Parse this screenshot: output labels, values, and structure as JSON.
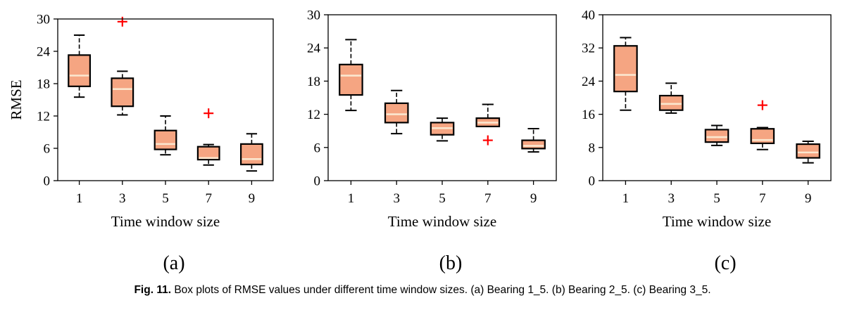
{
  "caption": {
    "label": "Fig. 11.",
    "text": "Box plots of RMSE values under different time window sizes. (a) Bearing 1_5. (b) Bearing 2_5. (c) Bearing 3_5."
  },
  "colors": {
    "box_fill": "#f5a582",
    "median": "#fbe7cf",
    "outlier": "#ff0000",
    "line": "#000000"
  },
  "chart_data": [
    {
      "type": "box",
      "panel_label": "(a)",
      "xlabel": "Time window size",
      "ylabel": "RMSE",
      "categories": [
        "1",
        "3",
        "5",
        "7",
        "9"
      ],
      "ylim": [
        0,
        30
      ],
      "yticks": [
        0,
        6,
        12,
        18,
        24,
        30
      ],
      "boxes": [
        {
          "whislo": 15.5,
          "q1": 17.5,
          "med": 19.5,
          "q3": 23.3,
          "whishi": 27,
          "fliers": []
        },
        {
          "whislo": 12.2,
          "q1": 13.8,
          "med": 17.0,
          "q3": 19.0,
          "whishi": 20.3,
          "fliers": [
            29.5
          ]
        },
        {
          "whislo": 4.8,
          "q1": 5.8,
          "med": 6.8,
          "q3": 9.3,
          "whishi": 12.0,
          "fliers": []
        },
        {
          "whislo": 2.9,
          "q1": 3.9,
          "med": 4.2,
          "q3": 6.3,
          "whishi": 6.7,
          "fliers": [
            12.5
          ]
        },
        {
          "whislo": 1.8,
          "q1": 3.0,
          "med": 4.0,
          "q3": 6.8,
          "whishi": 8.7,
          "fliers": []
        }
      ]
    },
    {
      "type": "box",
      "panel_label": "(b)",
      "xlabel": "Time window size",
      "ylabel": "",
      "categories": [
        "1",
        "3",
        "5",
        "7",
        "9"
      ],
      "ylim": [
        0,
        30
      ],
      "yticks": [
        0,
        6,
        12,
        18,
        24,
        30
      ],
      "boxes": [
        {
          "whislo": 12.7,
          "q1": 15.5,
          "med": 19.0,
          "q3": 21.0,
          "whishi": 25.5,
          "fliers": []
        },
        {
          "whislo": 8.5,
          "q1": 10.5,
          "med": 12.0,
          "q3": 14.0,
          "whishi": 16.3,
          "fliers": []
        },
        {
          "whislo": 7.2,
          "q1": 8.3,
          "med": 9.5,
          "q3": 10.5,
          "whishi": 11.3,
          "fliers": []
        },
        {
          "whislo": 9.8,
          "q1": 9.8,
          "med": 10.5,
          "q3": 11.3,
          "whishi": 13.8,
          "fliers": [
            7.3
          ]
        },
        {
          "whislo": 5.2,
          "q1": 5.8,
          "med": 6.3,
          "q3": 7.3,
          "whishi": 9.4,
          "fliers": []
        }
      ]
    },
    {
      "type": "box",
      "panel_label": "(c)",
      "xlabel": "Time window size",
      "ylabel": "",
      "categories": [
        "1",
        "3",
        "5",
        "7",
        "9"
      ],
      "ylim": [
        0,
        40
      ],
      "yticks": [
        0,
        8,
        16,
        24,
        32,
        40
      ],
      "boxes": [
        {
          "whislo": 17.0,
          "q1": 21.5,
          "med": 25.5,
          "q3": 32.5,
          "whishi": 34.5,
          "fliers": []
        },
        {
          "whislo": 16.3,
          "q1": 17.0,
          "med": 18.5,
          "q3": 20.5,
          "whishi": 23.5,
          "fliers": []
        },
        {
          "whislo": 8.5,
          "q1": 9.3,
          "med": 10.5,
          "q3": 12.3,
          "whishi": 13.3,
          "fliers": []
        },
        {
          "whislo": 7.5,
          "q1": 9.0,
          "med": 9.8,
          "q3": 12.5,
          "whishi": 12.8,
          "fliers": [
            18.2
          ]
        },
        {
          "whislo": 4.3,
          "q1": 5.5,
          "med": 6.8,
          "q3": 8.8,
          "whishi": 9.5,
          "fliers": []
        }
      ]
    }
  ]
}
